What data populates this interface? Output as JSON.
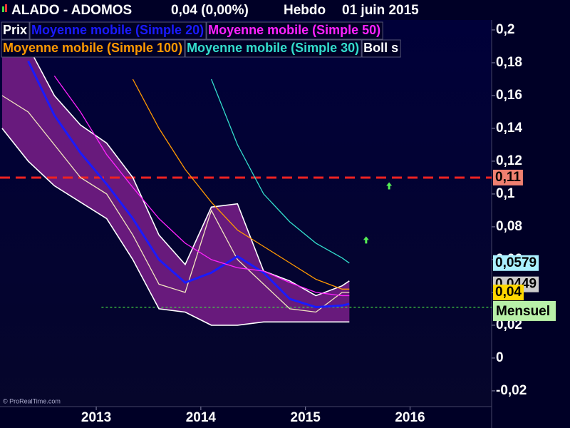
{
  "chart_data": {
    "type": "line",
    "title": "ALADO - ADOMOS",
    "last_quote": "0,04 (0,00%)",
    "period": "Hebdo",
    "date": "01 juin 2015",
    "watermark": "© ProRealTime.com",
    "mensuel": "Mensuel",
    "x": [
      2012.1,
      2012.35,
      2012.6,
      2012.85,
      2013.1,
      2013.35,
      2013.6,
      2013.85,
      2014.1,
      2014.35,
      2014.6,
      2014.85,
      2015.1,
      2015.35,
      2015.42
    ],
    "series": [
      {
        "name": "Prix",
        "color": "#f2e6c0",
        "values": [
          0.16,
          0.15,
          0.13,
          0.11,
          0.1,
          0.075,
          0.045,
          0.04,
          0.09,
          0.06,
          0.045,
          0.03,
          0.028,
          0.04,
          0.04
        ]
      },
      {
        "name": "Moyenne mobile (Simple 20)",
        "color": "#1a1aff",
        "values": [
          null,
          0.181,
          0.148,
          0.125,
          0.106,
          0.085,
          0.06,
          0.046,
          0.052,
          0.062,
          0.052,
          0.036,
          0.031,
          0.032,
          0.033
        ]
      },
      {
        "name": "Moyenne mobile (Simple 50)",
        "color": "#ff22ff",
        "values": [
          null,
          null,
          0.172,
          0.15,
          0.124,
          0.104,
          0.085,
          0.07,
          0.06,
          0.055,
          0.053,
          0.046,
          0.04,
          0.038,
          0.038
        ]
      },
      {
        "name": "Moyenne mobile (Simple 100)",
        "color": "#ff9900",
        "values": [
          null,
          null,
          null,
          null,
          null,
          0.17,
          0.14,
          0.115,
          0.095,
          0.078,
          0.068,
          0.058,
          0.048,
          0.042,
          0.042
        ]
      },
      {
        "name": "Moyenne mobile (Simple 30)",
        "color": "#33ddcc",
        "values": [
          null,
          null,
          null,
          null,
          null,
          null,
          null,
          null,
          0.17,
          0.13,
          0.1,
          0.083,
          0.07,
          0.061,
          0.0579
        ]
      }
    ],
    "bollinger": {
      "name": "Boll s",
      "color": "#ffffff",
      "fill": "#7a1f8a",
      "upper": [
        0.19,
        0.19,
        0.16,
        0.142,
        0.131,
        0.11,
        0.075,
        0.057,
        0.092,
        0.094,
        0.053,
        0.047,
        0.038,
        0.044,
        0.047
      ],
      "lower": [
        0.14,
        0.12,
        0.105,
        0.095,
        0.085,
        0.06,
        0.03,
        0.028,
        0.02,
        0.02,
        0.022,
        0.022,
        0.022,
        0.022,
        0.022
      ]
    },
    "hlines": [
      {
        "value": 0.11,
        "color": "#ee2222",
        "style": "dashed",
        "from": 2012.08
      },
      {
        "value": 0.031,
        "color": "#44dd44",
        "style": "dotted",
        "from": 2013.05
      }
    ],
    "price_labels": [
      {
        "value": 0.11,
        "label": "0,11",
        "color": "#f08070"
      },
      {
        "value": 0.0579,
        "label": "0,0579",
        "color": "#aaf0ff"
      },
      {
        "value": 0.0449,
        "label": "0,0449",
        "color": "#cccccc"
      },
      {
        "value": 0.04,
        "label": "0,04",
        "color": "#ffd700"
      }
    ],
    "arrows": [
      {
        "x": 2015.58,
        "y": 0.072
      },
      {
        "x": 2015.8,
        "y": 0.105
      }
    ],
    "xlim": [
      2012.08,
      2016.78
    ],
    "ylim": [
      -0.0296,
      0.2052
    ],
    "xticks": [
      2013,
      2014,
      2015,
      2016
    ],
    "yticks": [
      {
        "value": 0.2,
        "label": "0,2"
      },
      {
        "value": 0.18,
        "label": "0,18"
      },
      {
        "value": 0.16,
        "label": "0,16"
      },
      {
        "value": 0.14,
        "label": "0,14"
      },
      {
        "value": 0.12,
        "label": "0,12"
      },
      {
        "value": 0.1,
        "label": "0,1"
      },
      {
        "value": 0.08,
        "label": "0,08"
      },
      {
        "value": 0.06,
        "label": "0,06"
      },
      {
        "value": 0.04,
        "label": "0,04"
      },
      {
        "value": 0.02,
        "label": "0,02"
      },
      0,
      {
        "value": -0.02,
        "label": "-0,02"
      }
    ]
  }
}
